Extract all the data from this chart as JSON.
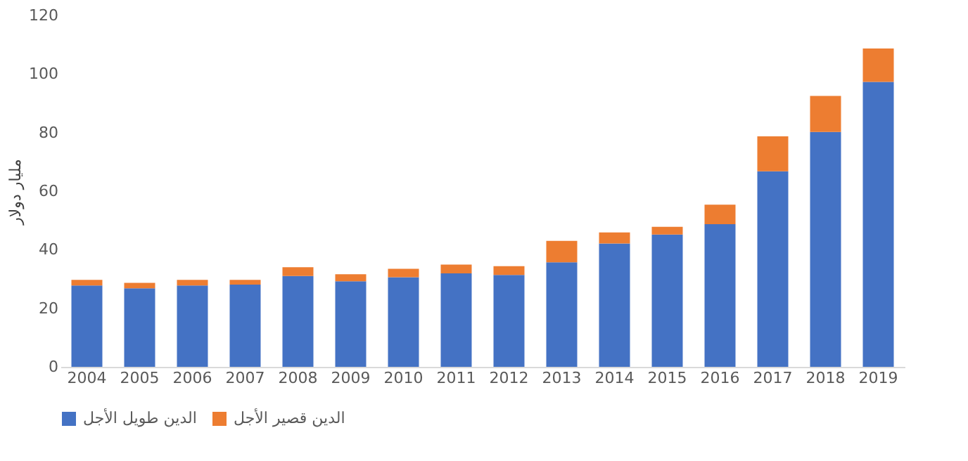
{
  "chart_data": {
    "type": "bar",
    "stacked": true,
    "ylabel": "مليار دولار",
    "categories": [
      "2004",
      "2005",
      "2006",
      "2007",
      "2008",
      "2009",
      "2010",
      "2011",
      "2012",
      "2013",
      "2014",
      "2015",
      "2016",
      "2017",
      "2018",
      "2019"
    ],
    "series": [
      {
        "name": "الدين طويل الأجل",
        "color": "#4472c4",
        "values": [
          27.8,
          26.8,
          27.8,
          28.1,
          31.0,
          29.2,
          30.6,
          31.9,
          31.4,
          35.7,
          42.1,
          45.2,
          48.7,
          66.8,
          80.2,
          97.3
        ]
      },
      {
        "name": "الدين قصير الأجل",
        "color": "#ed7d31",
        "values": [
          1.9,
          1.9,
          1.9,
          1.6,
          3.0,
          2.4,
          2.9,
          3.0,
          3.0,
          7.3,
          3.8,
          2.6,
          6.7,
          11.9,
          12.3,
          11.4
        ]
      }
    ],
    "ylim": [
      0,
      120
    ],
    "yticks": [
      0,
      20,
      40,
      60,
      80,
      100,
      120
    ],
    "grid": false,
    "legend": "bottom"
  }
}
